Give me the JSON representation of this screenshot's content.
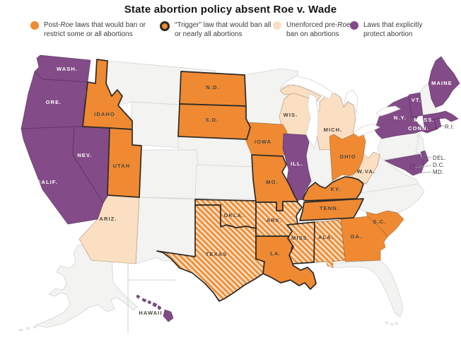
{
  "title": "State abortion policy absent Roe v. Wade",
  "legend": {
    "items": [
      {
        "id": "post_roe",
        "pre": "Post-",
        "italic": "Roe",
        "post": " laws that would ban or restrict some or all abortions",
        "swatch": "orange",
        "ring": false
      },
      {
        "id": "trigger",
        "pre": "",
        "italic": "",
        "post": "“Trigger” law that would ban all or nearly all abortions",
        "swatch": "orange",
        "ring": true
      },
      {
        "id": "pre_roe",
        "pre": "Unenforced pre-",
        "italic": "Roe",
        "post": " ban on abortions",
        "swatch": "peach",
        "ring": false
      },
      {
        "id": "protect",
        "pre": "",
        "italic": "",
        "post": "Laws that explicitly protect abortion",
        "swatch": "purple",
        "ring": false
      }
    ]
  },
  "colors": {
    "orange": "#EF8A33",
    "peach": "#FBDFC3",
    "purple": "#834B88",
    "neutral_state": "#F3F3F1",
    "trigger_outline": "#2D2A24",
    "label_dark": "#4B443C",
    "label_light": "#FFFFFF",
    "callout_text": "#3D3D3D",
    "divider": "#CCCCCC",
    "water": "#FFFFFF",
    "border_light": "#D4D4D2"
  },
  "map": {
    "states": [
      {
        "id": "WA",
        "label": "WASH.",
        "category": "protect"
      },
      {
        "id": "OR",
        "label": "ORE.",
        "category": "protect"
      },
      {
        "id": "CA",
        "label": "CALIF.",
        "category": "protect"
      },
      {
        "id": "NV",
        "label": "NEV.",
        "category": "protect"
      },
      {
        "id": "ID",
        "label": "IDAHO",
        "category": "trigger"
      },
      {
        "id": "MT",
        "label": "",
        "category": "none"
      },
      {
        "id": "WY",
        "label": "",
        "category": "none"
      },
      {
        "id": "UT",
        "label": "UTAH",
        "category": "trigger"
      },
      {
        "id": "AZ",
        "label": "ARIZ.",
        "category": "pre_roe"
      },
      {
        "id": "CO",
        "label": "",
        "category": "none"
      },
      {
        "id": "NM",
        "label": "",
        "category": "none"
      },
      {
        "id": "ND",
        "label": "N.D.",
        "category": "trigger"
      },
      {
        "id": "SD",
        "label": "S.D.",
        "category": "trigger"
      },
      {
        "id": "NE",
        "label": "",
        "category": "none"
      },
      {
        "id": "KS",
        "label": "",
        "category": "none"
      },
      {
        "id": "OK",
        "label": "OKLA.",
        "category": "trigger_pre"
      },
      {
        "id": "TX",
        "label": "TEXAS",
        "category": "trigger_pre"
      },
      {
        "id": "MN",
        "label": "",
        "category": "none"
      },
      {
        "id": "IA",
        "label": "IOWA",
        "category": "post_roe"
      },
      {
        "id": "MO",
        "label": "MO.",
        "category": "trigger"
      },
      {
        "id": "AR",
        "label": "ARK.",
        "category": "trigger_pre"
      },
      {
        "id": "LA",
        "label": "LA.",
        "category": "trigger"
      },
      {
        "id": "WI",
        "label": "WIS.",
        "category": "pre_roe"
      },
      {
        "id": "IL",
        "label": "ILL.",
        "category": "protect"
      },
      {
        "id": "MS",
        "label": "MISS.",
        "category": "trigger_pre"
      },
      {
        "id": "MI",
        "label": "MICH.",
        "category": "pre_roe"
      },
      {
        "id": "IN",
        "label": "",
        "category": "none"
      },
      {
        "id": "OH",
        "label": "OHIO",
        "category": "post_roe"
      },
      {
        "id": "KY",
        "label": "KY.",
        "category": "trigger"
      },
      {
        "id": "TN",
        "label": "TENN.",
        "category": "trigger"
      },
      {
        "id": "WV",
        "label": "W.VA.",
        "category": "pre_roe"
      },
      {
        "id": "VA",
        "label": "",
        "category": "none"
      },
      {
        "id": "NC",
        "label": "",
        "category": "none"
      },
      {
        "id": "SC",
        "label": "S.C.",
        "category": "post_roe"
      },
      {
        "id": "GA",
        "label": "GA.",
        "category": "post_roe"
      },
      {
        "id": "AL",
        "label": "ALA.",
        "category": "post_pre"
      },
      {
        "id": "FL",
        "label": "",
        "category": "none"
      },
      {
        "id": "PA",
        "label": "",
        "category": "none"
      },
      {
        "id": "NY",
        "label": "N.Y.",
        "category": "protect"
      },
      {
        "id": "NJ",
        "label": "",
        "category": "none"
      },
      {
        "id": "VT",
        "label": "VT.",
        "category": "protect"
      },
      {
        "id": "NH",
        "label": "",
        "category": "none"
      },
      {
        "id": "ME",
        "label": "MAINE",
        "category": "protect"
      },
      {
        "id": "MA",
        "label": "MASS.",
        "category": "protect"
      },
      {
        "id": "CT",
        "label": "CONN.",
        "category": "protect"
      },
      {
        "id": "RI",
        "label": "R.I.",
        "category": "protect"
      },
      {
        "id": "DE",
        "label": "DEL.",
        "category": "protect"
      },
      {
        "id": "MD",
        "label": "MD.",
        "category": "protect"
      },
      {
        "id": "DC",
        "label": "D.C.",
        "category": "protect"
      },
      {
        "id": "AK",
        "label": "",
        "category": "none"
      },
      {
        "id": "HI",
        "label": "HAWAII",
        "category": "protect"
      }
    ]
  }
}
